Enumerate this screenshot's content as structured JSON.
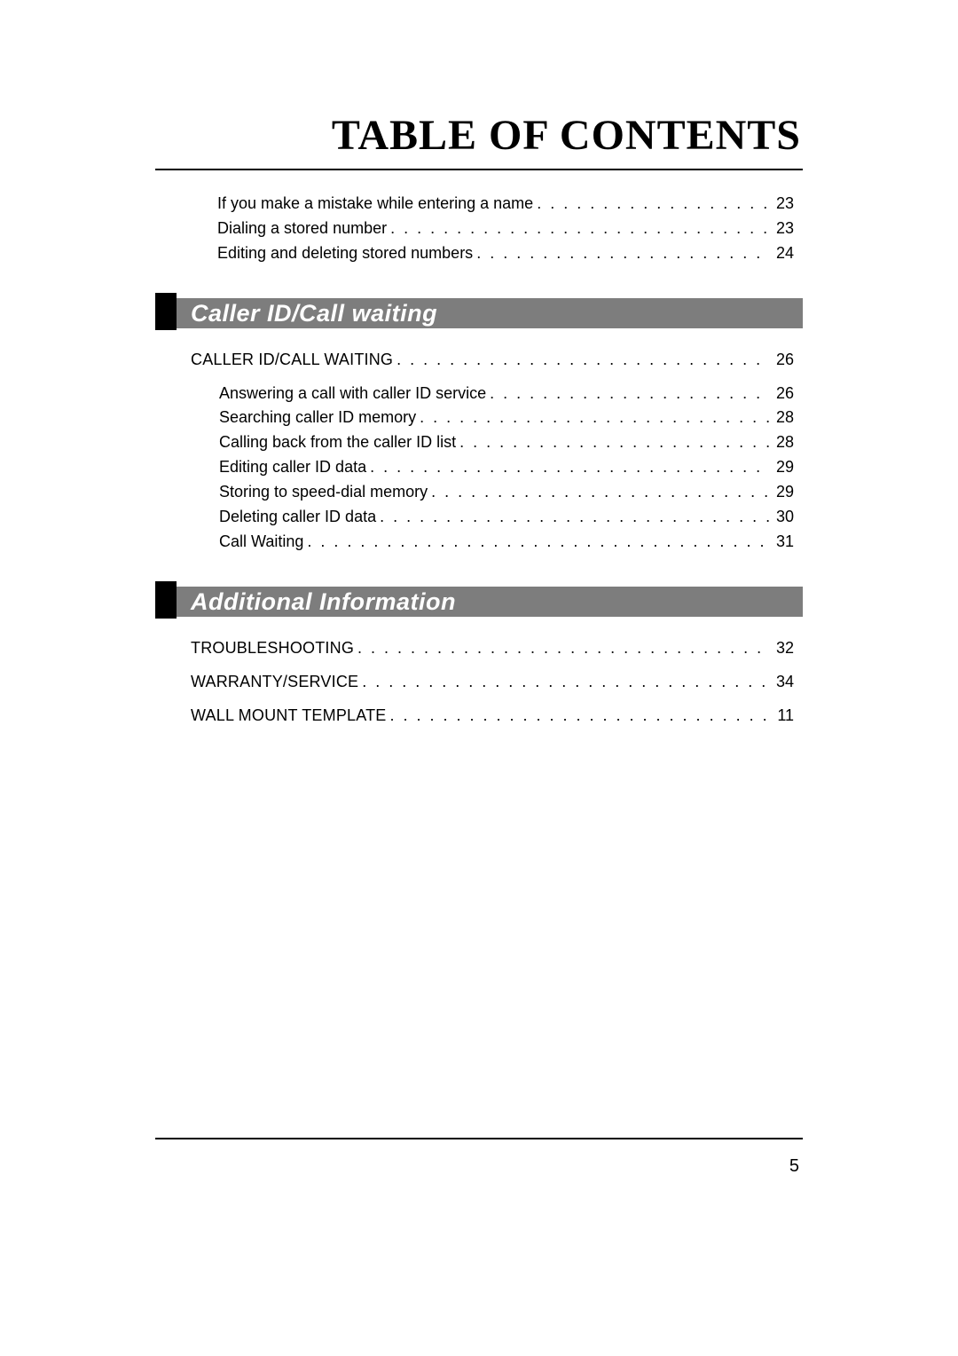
{
  "title": "TABLE OF CONTENTS",
  "page_number": "5",
  "colors": {
    "section_black": "#000000",
    "section_gray": "#7d7d7d",
    "section_text": "#ffffff",
    "body_text": "#000000",
    "background": "#ffffff"
  },
  "typography": {
    "title_font": "Times New Roman",
    "title_size_pt": 36,
    "title_weight": "bold",
    "header_font": "Arial",
    "header_size_pt": 20,
    "header_style": "italic bold",
    "body_font": "Arial",
    "body_size_pt": 13.5,
    "page_number_size_pt": 15
  },
  "top_entries": [
    {
      "label": "If you make a mistake while entering a name",
      "page": "23"
    },
    {
      "label": "Dialing a stored number",
      "page": "23"
    },
    {
      "label": "Editing and deleting stored numbers",
      "page": "24"
    }
  ],
  "sections": [
    {
      "title": "Caller ID/Call waiting",
      "level0": [
        {
          "label": "CALLER ID/CALL WAITING",
          "page": "26"
        }
      ],
      "level1": [
        {
          "label": "Answering a call with caller ID service",
          "page": "26"
        },
        {
          "label": "Searching caller ID memory",
          "page": "28"
        },
        {
          "label": "Calling back from the caller ID list",
          "page": "28"
        },
        {
          "label": "Editing caller ID data",
          "page": "29"
        },
        {
          "label": "Storing to speed-dial memory",
          "page": "29"
        },
        {
          "label": "Deleting caller ID data",
          "page": "30"
        },
        {
          "label": "Call Waiting",
          "page": "31"
        }
      ]
    },
    {
      "title": "Additional Information",
      "level0": [
        {
          "label": "TROUBLESHOOTING",
          "page": "32"
        },
        {
          "label": "WARRANTY/SERVICE",
          "page": "34"
        },
        {
          "label": "WALL MOUNT TEMPLATE",
          "page": "11"
        }
      ],
      "level1": []
    }
  ]
}
